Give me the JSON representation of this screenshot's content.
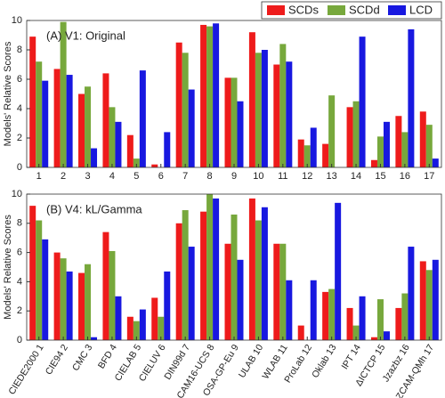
{
  "chart_data": [
    {
      "type": "bar",
      "title": "(A) V1: Original",
      "ylabel": "Models' Relative Scores",
      "categories": [
        "1",
        "2",
        "3",
        "4",
        "5",
        "6",
        "7",
        "8",
        "9",
        "10",
        "11",
        "12",
        "13",
        "14",
        "15",
        "16",
        "17"
      ],
      "series": [
        {
          "name": "SCDs",
          "color": "#ee1b1b",
          "values": [
            8.9,
            6.7,
            5.0,
            6.4,
            2.2,
            0.2,
            8.5,
            9.7,
            6.1,
            9.2,
            7.0,
            1.9,
            1.6,
            4.1,
            0.5,
            3.5,
            3.8
          ]
        },
        {
          "name": "SCDd",
          "color": "#77a83c",
          "values": [
            7.2,
            9.9,
            5.5,
            4.1,
            0.6,
            0,
            7.8,
            9.6,
            6.1,
            7.8,
            8.4,
            1.5,
            4.9,
            4.5,
            2.1,
            2.4,
            2.9
          ]
        },
        {
          "name": "LCD",
          "color": "#1818e0",
          "values": [
            5.9,
            6.3,
            1.3,
            3.1,
            6.6,
            2.4,
            5.3,
            9.8,
            4.5,
            8.0,
            7.2,
            2.7,
            0,
            8.9,
            3.1,
            9.4,
            0.6
          ]
        }
      ],
      "ylim": [
        0,
        10
      ],
      "yticks": [
        0,
        2,
        4,
        6,
        8,
        10
      ],
      "legend": "top-right"
    },
    {
      "type": "bar",
      "title": "(B) V4: kL/Gamma",
      "ylabel": "Models' Relative Scores",
      "categories": [
        "CIEDE2000 1",
        "CIE94 2",
        "CMC 3",
        "BFD 4",
        "CIELAB 5",
        "CIELUV 6",
        "DIN99d 7",
        "CAM16-UCS 8",
        "OSA-GP-Eu 9",
        "ULAB 10",
        "WLAB 11",
        "ProLab 12",
        "Oklab 13",
        "IPT 14",
        "ΔICTCP 15",
        "Jzazbz 16",
        "ZCAM-QMh 17"
      ],
      "series": [
        {
          "name": "SCDs",
          "color": "#ee1b1b",
          "values": [
            9.2,
            6.0,
            4.6,
            7.4,
            1.6,
            2.9,
            8.0,
            8.8,
            6.6,
            9.7,
            6.6,
            1.0,
            3.3,
            2.2,
            0.2,
            2.2,
            5.4
          ]
        },
        {
          "name": "SCDd",
          "color": "#77a83c",
          "values": [
            8.2,
            5.6,
            5.2,
            6.1,
            1.3,
            1.6,
            8.9,
            10.0,
            8.6,
            8.2,
            6.6,
            0,
            3.5,
            1.0,
            2.8,
            3.2,
            4.8
          ]
        },
        {
          "name": "LCD",
          "color": "#1818e0",
          "values": [
            6.9,
            4.7,
            0.2,
            3.0,
            2.1,
            4.7,
            6.4,
            9.7,
            5.5,
            9.1,
            4.1,
            4.1,
            9.4,
            3.0,
            0.6,
            6.4,
            5.5
          ]
        }
      ],
      "ylim": [
        0,
        10
      ],
      "yticks": [
        0,
        2,
        4,
        6,
        8,
        10
      ]
    }
  ]
}
